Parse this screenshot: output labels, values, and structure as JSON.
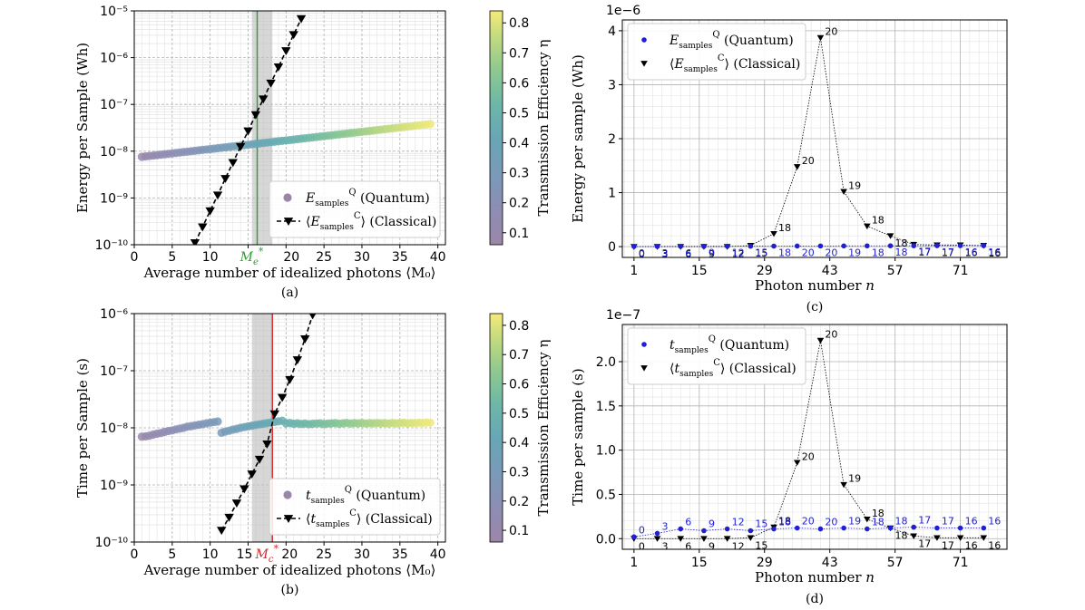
{
  "chart_data": [
    {
      "panel": "a",
      "type": "scatter",
      "caption": "(a)",
      "xlabel": "Average number of idealized photons ⟨M₀⟩",
      "ylabel": "Energy per Sample (Wh)",
      "xlim": [
        0,
        41
      ],
      "ylim": [
        1e-10,
        1e-05
      ],
      "yscale": "log",
      "xticks": [
        0,
        5,
        10,
        15,
        20,
        25,
        30,
        35,
        40
      ],
      "yticks": [
        "10⁻¹⁰",
        "10⁻⁹",
        "10⁻⁸",
        "10⁻⁷",
        "10⁻⁶",
        "10⁻⁵"
      ],
      "grid": true,
      "legend_position": "lower-right",
      "colorbar": {
        "label": "Transmission Efficiency η",
        "range": [
          0.06,
          0.84
        ],
        "ticks": [
          "0.1",
          "0.2",
          "0.3",
          "0.4",
          "0.5",
          "0.6",
          "0.7",
          "0.8"
        ]
      },
      "threshold_line": {
        "x": 16.2,
        "color": "#2ca02c",
        "label": "M",
        "label_sup": "*",
        "label_sub": "e"
      },
      "shaded_band": [
        15.5,
        18.2
      ],
      "quantum": {
        "legend": "E",
        "legend_sup": "Q",
        "legend_sub": "samples",
        "legend_suffix": " (Quantum)",
        "x": [
          1,
          1.5,
          2,
          2.5,
          3,
          3.5,
          4,
          4.5,
          5,
          5.5,
          6,
          6.5,
          7,
          7.5,
          8,
          8.5,
          9,
          9.5,
          10,
          10.5,
          11,
          11.5,
          12,
          12.5,
          13,
          13.5,
          14,
          14.5,
          15,
          15.5,
          16,
          16.5,
          17,
          17.5,
          18,
          18.5,
          19,
          19.5,
          20,
          20.5,
          21,
          21.5,
          22,
          22.5,
          23,
          23.5,
          24,
          24.5,
          25,
          25.5,
          26,
          26.5,
          27,
          27.5,
          28,
          28.5,
          29,
          29.5,
          30,
          30.5,
          31,
          31.5,
          32,
          32.5,
          33,
          33.5,
          34,
          34.5,
          35,
          35.5,
          36,
          36.5,
          37,
          37.5,
          38,
          38.5,
          39
        ],
        "y_log10_start": -8.12,
        "y_log10_end": -7.42,
        "eta_start": 0.09,
        "eta_end": 0.82
      },
      "classical": {
        "legend": "E",
        "legend_sup": "C",
        "legend_sub": "samples",
        "legend_suffix": " (Classical)",
        "x": [
          8,
          9,
          10,
          11,
          12,
          13,
          14,
          15,
          16,
          17,
          18,
          19,
          20,
          21,
          22
        ],
        "y": [
          1.1e-10,
          2.4e-10,
          5.3e-10,
          1.15e-09,
          2.6e-09,
          5.7e-09,
          1.25e-08,
          2.7e-08,
          6e-08,
          1.3e-07,
          2.85e-07,
          6.3e-07,
          1.4e-06,
          3.1e-06,
          6.8e-06
        ]
      }
    },
    {
      "panel": "b",
      "type": "scatter",
      "caption": "(b)",
      "xlabel": "Average number of idealized photons ⟨M₀⟩",
      "ylabel": "Time per Sample (s)",
      "xlim": [
        0,
        41
      ],
      "ylim": [
        1e-10,
        1e-06
      ],
      "yscale": "log",
      "xticks": [
        0,
        5,
        10,
        15,
        20,
        25,
        30,
        35,
        40
      ],
      "yticks": [
        "10⁻¹⁰",
        "10⁻⁹",
        "10⁻⁸",
        "10⁻⁷",
        "10⁻⁶"
      ],
      "grid": true,
      "legend_position": "lower-right",
      "colorbar": {
        "label": "Transmission Efficiency η",
        "range": [
          0.06,
          0.84
        ],
        "ticks": [
          "0.1",
          "0.2",
          "0.3",
          "0.4",
          "0.5",
          "0.6",
          "0.7",
          "0.8"
        ]
      },
      "threshold_line": {
        "x": 18.2,
        "color": "#d62728",
        "label": "M",
        "label_sup": "*",
        "label_sub": "c"
      },
      "shaded_band": [
        15.5,
        18.2
      ],
      "quantum": {
        "legend": "t",
        "legend_sup": "Q",
        "legend_sub": "samples",
        "legend_suffix": " (Quantum)",
        "x": [
          1,
          1.5,
          2,
          2.5,
          3,
          3.5,
          4,
          4.5,
          5,
          5.5,
          6,
          6.5,
          7,
          7.5,
          8,
          8.5,
          9,
          9.5,
          10,
          10.5,
          11,
          11.5,
          12,
          12.5,
          13,
          13.5,
          14,
          14.5,
          15,
          15.5,
          16,
          16.5,
          17,
          17.5,
          18,
          18.5,
          19,
          19.5,
          20,
          20.5,
          21,
          21.5,
          22,
          22.5,
          23,
          23.5,
          24,
          24.5,
          25,
          25.5,
          26,
          26.5,
          27,
          27.5,
          28,
          28.5,
          29,
          29.5,
          30,
          30.5,
          31,
          31.5,
          32,
          32.5,
          33,
          33.5,
          34,
          34.5,
          35,
          35.5,
          36,
          36.5,
          37,
          37.5,
          38,
          38.5,
          39
        ],
        "y": [
          7e-09,
          7.1e-09,
          7.3e-09,
          7.6e-09,
          7.9e-09,
          8.1e-09,
          8.5e-09,
          8.8e-09,
          9e-09,
          9.4e-09,
          9.7e-09,
          1e-08,
          1.05e-08,
          1.07e-08,
          1.1e-08,
          1.13e-08,
          1.16e-08,
          1.2e-08,
          1.23e-08,
          1.26e-08,
          1.29e-08,
          8.2e-09,
          8.6e-09,
          8.9e-09,
          9.3e-09,
          9.6e-09,
          1e-08,
          1.03e-08,
          1.06e-08,
          1.09e-08,
          1.12e-08,
          1.15e-08,
          1.18e-08,
          1.21e-08,
          1.24e-08,
          1.27e-08,
          1.3e-08,
          1.33e-08,
          1.2e-08,
          1.22e-08,
          1.18e-08,
          1.2e-08,
          1.17e-08,
          1.19e-08,
          1.16e-08,
          1.18e-08,
          1.19e-08,
          1.2e-08,
          1.17e-08,
          1.19e-08,
          1.2e-08,
          1.21e-08,
          1.18e-08,
          1.2e-08,
          1.22e-08,
          1.19e-08,
          1.21e-08,
          1.2e-08,
          1.22e-08,
          1.19e-08,
          1.21e-08,
          1.2e-08,
          1.22e-08,
          1.2e-08,
          1.21e-08,
          1.19e-08,
          1.22e-08,
          1.2e-08,
          1.21e-08,
          1.23e-08,
          1.2e-08,
          1.22e-08,
          1.21e-08,
          1.23e-08,
          1.22e-08,
          1.24e-08,
          1.23e-08
        ],
        "eta_start": 0.09,
        "eta_end": 0.82
      },
      "classical": {
        "legend": "t",
        "legend_sup": "C",
        "legend_sub": "samples",
        "legend_suffix": " (Classical)",
        "x": [
          11.5,
          12.5,
          13.5,
          14.5,
          15.5,
          16.5,
          17.5,
          18.5,
          19.5,
          20.5,
          21.5,
          22.5,
          23.5
        ],
        "y": [
          1.6e-10,
          2.7e-10,
          4.8e-10,
          8.5e-10,
          1.55e-09,
          2.8e-09,
          5.2e-09,
          1.75e-08,
          3.4e-08,
          7e-08,
          1.55e-07,
          3.6e-07,
          9.5e-07
        ]
      }
    },
    {
      "panel": "c",
      "type": "scatter",
      "caption": "(c)",
      "xlabel": "Photon number n",
      "ylabel": "Energy per sample (Wh)",
      "scale_label": "1e−6",
      "xlim": [
        -1.5,
        81
      ],
      "ylim": [
        -0.2,
        4.2
      ],
      "xticks": [
        1,
        15,
        29,
        43,
        57,
        71
      ],
      "yticks": [
        0,
        1,
        2,
        3,
        4
      ],
      "grid": true,
      "legend_position": "upper-left",
      "quantum": {
        "legend": "E",
        "legend_sup": "Q",
        "legend_sub": "samples",
        "legend_suffix": " (Quantum)",
        "x": [
          1,
          6,
          11,
          16,
          21,
          26,
          31,
          36,
          41,
          46,
          51,
          56,
          61,
          66,
          71,
          76
        ],
        "y": [
          0.003,
          0.004,
          0.005,
          0.006,
          0.007,
          0.008,
          0.01,
          0.011,
          0.012,
          0.013,
          0.014,
          0.015,
          0.016,
          0.017,
          0.018,
          0.019
        ],
        "labels": [
          "0",
          "3",
          "6",
          "9",
          "12",
          "15",
          "18",
          "20",
          "20",
          "19",
          "18",
          "18",
          "17",
          "17",
          "16",
          "16"
        ]
      },
      "classical": {
        "legend": "E",
        "legend_sup": "C",
        "legend_sub": "samples",
        "legend_suffix": " (Classical)",
        "x": [
          1,
          6,
          11,
          16,
          21,
          26,
          31,
          36,
          41,
          46,
          51,
          56,
          61,
          66,
          71,
          76
        ],
        "y": [
          0.0,
          0.0,
          0.0,
          0.0,
          0.0,
          0.02,
          0.24,
          1.48,
          3.87,
          1.02,
          0.38,
          0.2,
          0.04,
          0.03,
          0.03,
          0.02
        ],
        "labels": [
          "0",
          "3",
          "6",
          "9",
          "12",
          "15",
          "18",
          "20",
          "20",
          "19",
          "18",
          "18",
          "17",
          "17",
          "16",
          "16"
        ]
      }
    },
    {
      "panel": "d",
      "type": "scatter",
      "caption": "(d)",
      "xlabel": "Photon number n",
      "ylabel": "Time per sample (s)",
      "scale_label": "1e−7",
      "xlim": [
        -1.5,
        81
      ],
      "ylim": [
        -0.12,
        2.42
      ],
      "xticks": [
        1,
        15,
        29,
        43,
        57,
        71
      ],
      "yticks": [
        "0.0",
        "0.5",
        "1.0",
        "1.5",
        "2.0"
      ],
      "grid": true,
      "legend_position": "upper-left",
      "quantum": {
        "legend": "t",
        "legend_sup": "Q",
        "legend_sub": "samples",
        "legend_suffix": " (Quantum)",
        "x": [
          1,
          6,
          11,
          16,
          21,
          26,
          31,
          36,
          41,
          46,
          51,
          56,
          61,
          66,
          71,
          76
        ],
        "y": [
          0.02,
          0.06,
          0.11,
          0.09,
          0.11,
          0.09,
          0.11,
          0.12,
          0.11,
          0.12,
          0.11,
          0.12,
          0.13,
          0.12,
          0.12,
          0.12
        ],
        "labels": [
          "0",
          "3",
          "6",
          "9",
          "12",
          "15",
          "18",
          "20",
          "20",
          "19",
          "18",
          "18",
          "17",
          "17",
          "16",
          "16"
        ]
      },
      "classical": {
        "legend": "t",
        "legend_sup": "C",
        "legend_sub": "samples",
        "legend_suffix": " (Classical)",
        "x": [
          1,
          6,
          11,
          16,
          21,
          26,
          31,
          36,
          41,
          46,
          51,
          56,
          61,
          66,
          71,
          76
        ],
        "y": [
          0.0,
          0.0,
          0.0,
          0.0,
          0.0,
          0.01,
          0.13,
          0.86,
          2.24,
          0.61,
          0.22,
          0.12,
          0.03,
          0.01,
          0.01,
          0.01
        ],
        "labels": [
          "0",
          "3",
          "6",
          "9",
          "12",
          "15",
          "18",
          "20",
          "20",
          "19",
          "18",
          "18",
          "17",
          "17",
          "16",
          "16"
        ]
      }
    }
  ]
}
